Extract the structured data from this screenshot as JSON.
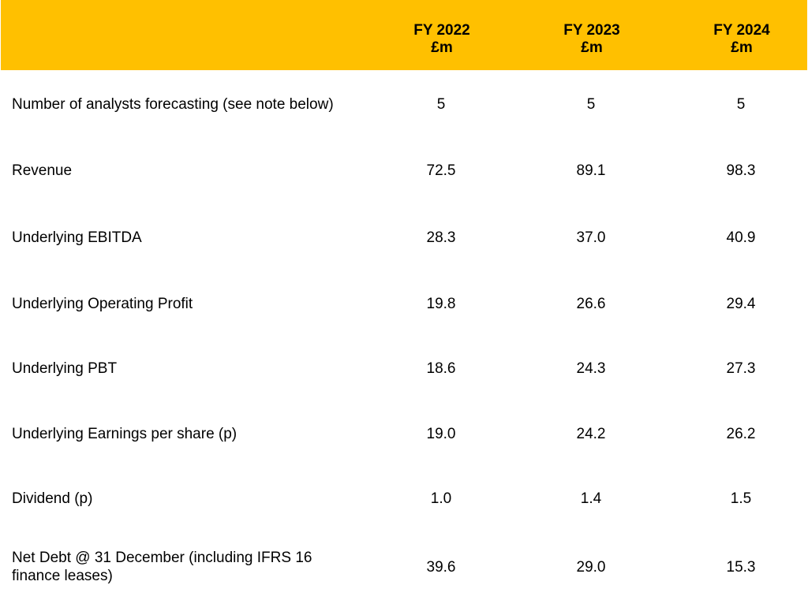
{
  "header": {
    "columns": [
      {
        "year": "FY 2022",
        "unit": "£m"
      },
      {
        "year": "FY 2023",
        "unit": "£m"
      },
      {
        "year": "FY 2024",
        "unit": "£m"
      }
    ]
  },
  "rows": [
    {
      "label": "Number of analysts forecasting (see note below)",
      "values": [
        "5",
        "5",
        "5"
      ]
    },
    {
      "label": "Revenue",
      "values": [
        "72.5",
        "89.1",
        "98.3"
      ]
    },
    {
      "label": "Underlying EBITDA",
      "values": [
        "28.3",
        "37.0",
        "40.9"
      ]
    },
    {
      "label": "Underlying Operating Profit",
      "values": [
        "19.8",
        "26.6",
        "29.4"
      ]
    },
    {
      "label": "Underlying PBT",
      "values": [
        "18.6",
        "24.3",
        "27.3"
      ]
    },
    {
      "label": "Underlying Earnings per share (p)",
      "values": [
        "19.0",
        "24.2",
        "26.2"
      ]
    },
    {
      "label": "Dividend (p)",
      "values": [
        "1.0",
        "1.4",
        "1.5"
      ]
    },
    {
      "label": "Net Debt @ 31 December (including IFRS 16 finance leases)",
      "values": [
        "39.6",
        "29.0",
        "15.3"
      ]
    }
  ]
}
